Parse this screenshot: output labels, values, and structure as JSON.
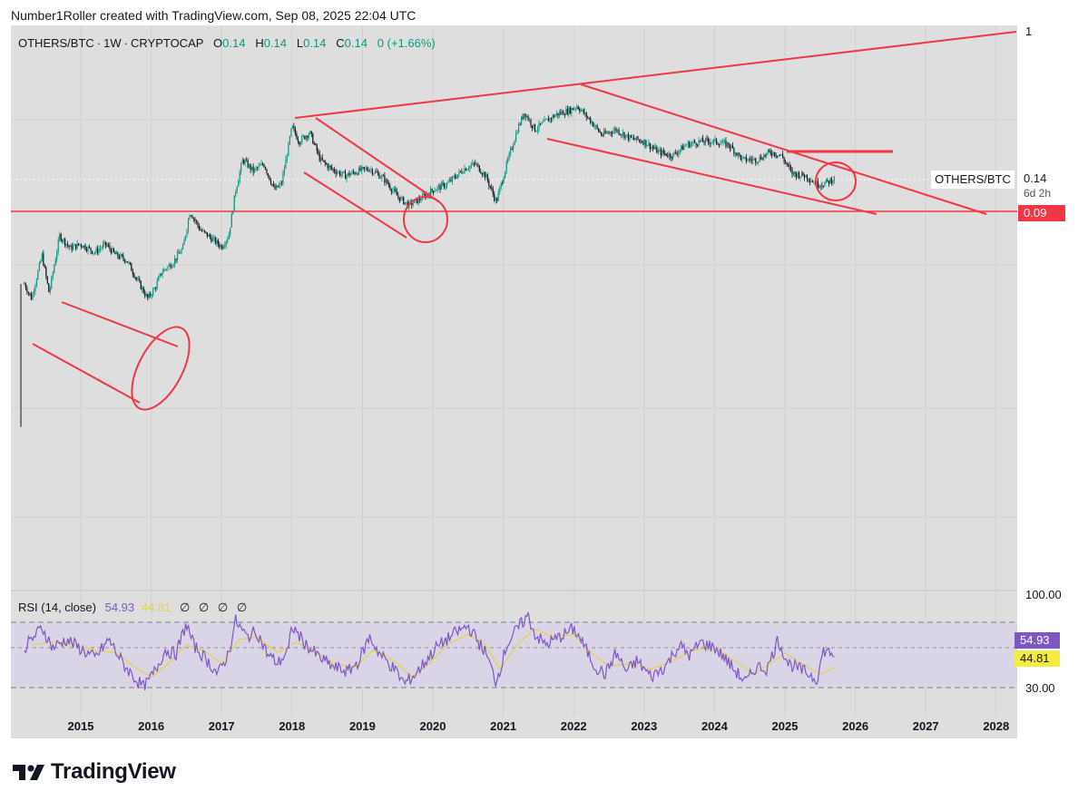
{
  "attribution": "Number1Roller created with TradingView.com, Sep 08, 2025 22:04 UTC",
  "legend": {
    "symbol": "OTHERS/BTC",
    "interval": "1W",
    "exchange": "CRYPTOCAP",
    "o_label": "O",
    "o_value": "0.14",
    "h_label": "H",
    "h_value": "0.14",
    "l_label": "L",
    "l_value": "0.14",
    "c_label": "C",
    "c_value": "0.14",
    "change": "0 (+1.66%)"
  },
  "price_scale": {
    "top_label": "1",
    "symbol_label": "OTHERS/BTC",
    "last_price": "0.14",
    "countdown": "6d 2h",
    "level_price": "0.09"
  },
  "rsi": {
    "title": "RSI (14, close)",
    "value": "54.93",
    "ma_value": "44.81",
    "na_marks": [
      "∅",
      "∅",
      "∅",
      "∅"
    ],
    "upper_tick": "100.00",
    "lower_tick": "30.00",
    "value_box": "54.93",
    "ma_box": "44.81"
  },
  "colors": {
    "up": "#089981",
    "down": "#131722",
    "annotation": "#f23645",
    "rsi_line": "#7e57c2",
    "rsi_ma": "#e5d34a",
    "pane_bg": "#dedede"
  },
  "brand": {
    "logo_icon": "tradingview-logo-icon",
    "wordmark": "TradingView"
  },
  "chart_data": {
    "type": "candlestick",
    "scale": "log",
    "x_ticks": [
      "2015",
      "2016",
      "2017",
      "2018",
      "2019",
      "2020",
      "2021",
      "2022",
      "2023",
      "2024",
      "2025",
      "2026",
      "2027",
      "2028"
    ],
    "price_series": {
      "name": "OTHERS/BTC",
      "points": [
        [
          2014.15,
          0.005
        ],
        [
          2014.2,
          0.034
        ],
        [
          2014.3,
          0.028
        ],
        [
          2014.45,
          0.05
        ],
        [
          2014.55,
          0.03
        ],
        [
          2014.7,
          0.065
        ],
        [
          2014.85,
          0.055
        ],
        [
          2015.0,
          0.058
        ],
        [
          2015.2,
          0.052
        ],
        [
          2015.35,
          0.058
        ],
        [
          2015.5,
          0.05
        ],
        [
          2015.65,
          0.047
        ],
        [
          2015.8,
          0.036
        ],
        [
          2015.95,
          0.028
        ],
        [
          2016.05,
          0.032
        ],
        [
          2016.15,
          0.04
        ],
        [
          2016.3,
          0.045
        ],
        [
          2016.45,
          0.055
        ],
        [
          2016.55,
          0.09
        ],
        [
          2016.7,
          0.07
        ],
        [
          2016.85,
          0.063
        ],
        [
          2017.0,
          0.056
        ],
        [
          2017.1,
          0.065
        ],
        [
          2017.2,
          0.12
        ],
        [
          2017.3,
          0.18
        ],
        [
          2017.45,
          0.155
        ],
        [
          2017.6,
          0.17
        ],
        [
          2017.75,
          0.12
        ],
        [
          2017.85,
          0.13
        ],
        [
          2018.0,
          0.28
        ],
        [
          2018.1,
          0.23
        ],
        [
          2018.25,
          0.26
        ],
        [
          2018.4,
          0.18
        ],
        [
          2018.55,
          0.16
        ],
        [
          2018.75,
          0.145
        ],
        [
          2018.95,
          0.155
        ],
        [
          2019.1,
          0.16
        ],
        [
          2019.3,
          0.14
        ],
        [
          2019.5,
          0.11
        ],
        [
          2019.65,
          0.098
        ],
        [
          2019.8,
          0.105
        ],
        [
          2020.0,
          0.12
        ],
        [
          2020.2,
          0.13
        ],
        [
          2020.45,
          0.16
        ],
        [
          2020.6,
          0.17
        ],
        [
          2020.75,
          0.145
        ],
        [
          2020.9,
          0.102
        ],
        [
          2021.05,
          0.17
        ],
        [
          2021.2,
          0.27
        ],
        [
          2021.3,
          0.34
        ],
        [
          2021.45,
          0.27
        ],
        [
          2021.6,
          0.3
        ],
        [
          2021.75,
          0.33
        ],
        [
          2021.95,
          0.35
        ],
        [
          2022.05,
          0.37
        ],
        [
          2022.25,
          0.3
        ],
        [
          2022.4,
          0.25
        ],
        [
          2022.6,
          0.27
        ],
        [
          2022.8,
          0.24
        ],
        [
          2023.0,
          0.23
        ],
        [
          2023.2,
          0.2
        ],
        [
          2023.4,
          0.19
        ],
        [
          2023.6,
          0.22
        ],
        [
          2023.8,
          0.23
        ],
        [
          2024.0,
          0.23
        ],
        [
          2024.2,
          0.22
        ],
        [
          2024.4,
          0.18
        ],
        [
          2024.6,
          0.18
        ],
        [
          2024.8,
          0.2
        ],
        [
          2024.95,
          0.19
        ],
        [
          2025.1,
          0.15
        ],
        [
          2025.3,
          0.145
        ],
        [
          2025.45,
          0.13
        ],
        [
          2025.55,
          0.13
        ],
        [
          2025.7,
          0.14
        ]
      ]
    },
    "rsi_series": {
      "name": "RSI (14, close)",
      "ylim": [
        30,
        100
      ],
      "points": [
        [
          2014.2,
          60
        ],
        [
          2014.45,
          75
        ],
        [
          2014.6,
          60
        ],
        [
          2014.8,
          66
        ],
        [
          2015.0,
          59
        ],
        [
          2015.2,
          52
        ],
        [
          2015.4,
          66
        ],
        [
          2015.6,
          48
        ],
        [
          2015.8,
          35
        ],
        [
          2015.9,
          30
        ],
        [
          2016.05,
          42
        ],
        [
          2016.2,
          58
        ],
        [
          2016.35,
          55
        ],
        [
          2016.5,
          78
        ],
        [
          2016.6,
          62
        ],
        [
          2016.8,
          50
        ],
        [
          2016.95,
          40
        ],
        [
          2017.1,
          56
        ],
        [
          2017.2,
          80
        ],
        [
          2017.35,
          68
        ],
        [
          2017.5,
          72
        ],
        [
          2017.65,
          55
        ],
        [
          2017.8,
          48
        ],
        [
          2017.95,
          58
        ],
        [
          2018.0,
          76
        ],
        [
          2018.2,
          62
        ],
        [
          2018.4,
          52
        ],
        [
          2018.6,
          45
        ],
        [
          2018.8,
          42
        ],
        [
          2018.95,
          50
        ],
        [
          2019.1,
          68
        ],
        [
          2019.25,
          55
        ],
        [
          2019.45,
          44
        ],
        [
          2019.6,
          33
        ],
        [
          2019.75,
          40
        ],
        [
          2019.9,
          50
        ],
        [
          2020.05,
          60
        ],
        [
          2020.2,
          66
        ],
        [
          2020.35,
          72
        ],
        [
          2020.5,
          76
        ],
        [
          2020.6,
          68
        ],
        [
          2020.75,
          56
        ],
        [
          2020.9,
          34
        ],
        [
          2021.05,
          62
        ],
        [
          2021.2,
          74
        ],
        [
          2021.35,
          84
        ],
        [
          2021.45,
          70
        ],
        [
          2021.6,
          62
        ],
        [
          2021.8,
          68
        ],
        [
          2022.0,
          74
        ],
        [
          2022.1,
          66
        ],
        [
          2022.3,
          46
        ],
        [
          2022.45,
          40
        ],
        [
          2022.6,
          56
        ],
        [
          2022.75,
          42
        ],
        [
          2022.9,
          50
        ],
        [
          2023.1,
          38
        ],
        [
          2023.3,
          46
        ],
        [
          2023.5,
          62
        ],
        [
          2023.65,
          54
        ],
        [
          2023.8,
          64
        ],
        [
          2024.0,
          60
        ],
        [
          2024.15,
          52
        ],
        [
          2024.3,
          42
        ],
        [
          2024.45,
          34
        ],
        [
          2024.6,
          46
        ],
        [
          2024.75,
          44
        ],
        [
          2024.9,
          66
        ],
        [
          2025.05,
          48
        ],
        [
          2025.2,
          44
        ],
        [
          2025.35,
          40
        ],
        [
          2025.45,
          36
        ],
        [
          2025.55,
          58
        ],
        [
          2025.7,
          55
        ]
      ]
    },
    "rsi_ma_series": {
      "name": "RSI-based MA",
      "points": [
        [
          2014.3,
          62
        ],
        [
          2014.6,
          64
        ],
        [
          2014.9,
          62
        ],
        [
          2015.2,
          58
        ],
        [
          2015.5,
          56
        ],
        [
          2015.8,
          44
        ],
        [
          2016.0,
          38
        ],
        [
          2016.2,
          46
        ],
        [
          2016.5,
          62
        ],
        [
          2016.8,
          56
        ],
        [
          2017.0,
          48
        ],
        [
          2017.25,
          66
        ],
        [
          2017.5,
          68
        ],
        [
          2017.8,
          56
        ],
        [
          2018.05,
          64
        ],
        [
          2018.3,
          58
        ],
        [
          2018.6,
          48
        ],
        [
          2018.9,
          45
        ],
        [
          2019.15,
          58
        ],
        [
          2019.45,
          50
        ],
        [
          2019.7,
          38
        ],
        [
          2019.95,
          48
        ],
        [
          2020.2,
          62
        ],
        [
          2020.5,
          70
        ],
        [
          2020.75,
          62
        ],
        [
          2020.95,
          44
        ],
        [
          2021.2,
          62
        ],
        [
          2021.45,
          74
        ],
        [
          2021.7,
          68
        ],
        [
          2022.0,
          70
        ],
        [
          2022.25,
          56
        ],
        [
          2022.5,
          46
        ],
        [
          2022.8,
          48
        ],
        [
          2023.1,
          44
        ],
        [
          2023.4,
          50
        ],
        [
          2023.7,
          58
        ],
        [
          2024.0,
          60
        ],
        [
          2024.3,
          50
        ],
        [
          2024.55,
          40
        ],
        [
          2024.8,
          48
        ],
        [
          2025.0,
          56
        ],
        [
          2025.3,
          46
        ],
        [
          2025.5,
          40
        ],
        [
          2025.7,
          45
        ]
      ]
    },
    "rsi_bands": [
      70,
      50,
      30
    ]
  }
}
